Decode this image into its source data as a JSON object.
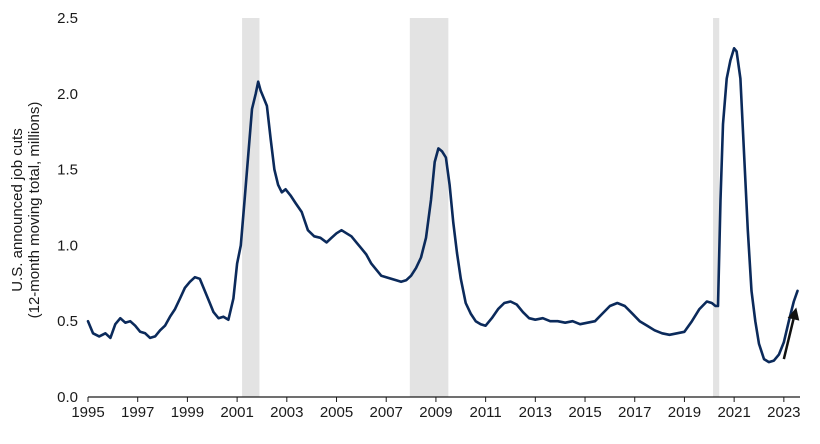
{
  "chart_data": {
    "type": "line",
    "title": "",
    "ylabel_line1": "U.S. announced job cuts",
    "ylabel_line2": "(12-month moving total, millions)",
    "xlim": [
      1995,
      2023.65
    ],
    "ylim": [
      0,
      2.5
    ],
    "yticks": [
      "0.0",
      "0.5",
      "1.0",
      "1.5",
      "2.0",
      "2.5"
    ],
    "xticks": [
      "1995",
      "1997",
      "1999",
      "2001",
      "2003",
      "2005",
      "2007",
      "2009",
      "2011",
      "2013",
      "2015",
      "2017",
      "2019",
      "2021",
      "2023"
    ],
    "grid": false,
    "line_color": "#0b2a5b",
    "shade_color": "#e3e3e3",
    "recessions": [
      [
        2001.2,
        2001.9
      ],
      [
        2007.95,
        2009.5
      ],
      [
        2020.15,
        2020.4
      ]
    ],
    "series": [
      {
        "x": [
          1995.0,
          1995.2,
          1995.45,
          1995.7,
          1995.9,
          1996.1,
          1996.3,
          1996.5,
          1996.7,
          1996.9,
          1997.1,
          1997.3,
          1997.5,
          1997.7,
          1997.9,
          1998.1,
          1998.3,
          1998.5,
          1998.7,
          1998.9,
          1999.1,
          1999.3,
          1999.5,
          1999.7,
          1999.9,
          2000.05,
          2000.25,
          2000.45,
          2000.65,
          2000.85,
          2001.0,
          2001.15,
          2001.3,
          2001.45,
          2001.6,
          2001.75,
          2001.85,
          2001.95,
          2002.05,
          2002.2,
          2002.35,
          2002.5,
          2002.65,
          2002.8,
          2002.95,
          2003.15,
          2003.35,
          2003.6,
          2003.85,
          2004.1,
          2004.35,
          2004.6,
          2004.8,
          2005.0,
          2005.2,
          2005.4,
          2005.6,
          2005.8,
          2006.0,
          2006.2,
          2006.4,
          2006.6,
          2006.8,
          2007.0,
          2007.2,
          2007.4,
          2007.6,
          2007.8,
          2008.0,
          2008.2,
          2008.4,
          2008.6,
          2008.8,
          2008.95,
          2009.1,
          2009.25,
          2009.4,
          2009.55,
          2009.7,
          2009.85,
          2010.0,
          2010.2,
          2010.4,
          2010.6,
          2010.8,
          2011.0,
          2011.25,
          2011.5,
          2011.75,
          2012.0,
          2012.25,
          2012.5,
          2012.75,
          2013.0,
          2013.3,
          2013.6,
          2013.9,
          2014.2,
          2014.5,
          2014.8,
          2015.1,
          2015.4,
          2015.7,
          2016.0,
          2016.3,
          2016.6,
          2016.9,
          2017.2,
          2017.5,
          2017.8,
          2018.1,
          2018.4,
          2018.7,
          2019.0,
          2019.3,
          2019.6,
          2019.9,
          2020.1,
          2020.25,
          2020.35,
          2020.45,
          2020.55,
          2020.7,
          2020.85,
          2021.0,
          2021.1,
          2021.25,
          2021.4,
          2021.55,
          2021.7,
          2021.85,
          2022.0,
          2022.2,
          2022.4,
          2022.6,
          2022.8,
          2023.0,
          2023.2,
          2023.4,
          2023.55
        ],
        "values": [
          0.5,
          0.42,
          0.4,
          0.42,
          0.39,
          0.48,
          0.52,
          0.49,
          0.5,
          0.47,
          0.43,
          0.42,
          0.39,
          0.4,
          0.44,
          0.47,
          0.53,
          0.58,
          0.65,
          0.72,
          0.76,
          0.79,
          0.78,
          0.7,
          0.62,
          0.56,
          0.52,
          0.53,
          0.51,
          0.65,
          0.88,
          1.0,
          1.3,
          1.6,
          1.9,
          2.0,
          2.08,
          2.02,
          1.98,
          1.92,
          1.7,
          1.5,
          1.4,
          1.35,
          1.37,
          1.33,
          1.28,
          1.22,
          1.1,
          1.06,
          1.05,
          1.02,
          1.05,
          1.08,
          1.1,
          1.08,
          1.06,
          1.02,
          0.98,
          0.94,
          0.88,
          0.84,
          0.8,
          0.79,
          0.78,
          0.77,
          0.76,
          0.77,
          0.8,
          0.85,
          0.92,
          1.05,
          1.3,
          1.55,
          1.64,
          1.62,
          1.58,
          1.4,
          1.15,
          0.95,
          0.78,
          0.62,
          0.55,
          0.5,
          0.48,
          0.47,
          0.52,
          0.58,
          0.62,
          0.63,
          0.61,
          0.56,
          0.52,
          0.51,
          0.52,
          0.5,
          0.5,
          0.49,
          0.5,
          0.48,
          0.49,
          0.5,
          0.55,
          0.6,
          0.62,
          0.6,
          0.55,
          0.5,
          0.47,
          0.44,
          0.42,
          0.41,
          0.42,
          0.43,
          0.5,
          0.58,
          0.63,
          0.62,
          0.6,
          0.6,
          1.3,
          1.8,
          2.1,
          2.22,
          2.3,
          2.28,
          2.1,
          1.6,
          1.1,
          0.7,
          0.5,
          0.35,
          0.25,
          0.23,
          0.24,
          0.28,
          0.36,
          0.5,
          0.63,
          0.7
        ]
      }
    ],
    "annotation": {
      "type": "arrow",
      "from": [
        2023.0,
        0.25
      ],
      "to": [
        2023.5,
        0.59
      ],
      "color": "#111111"
    }
  }
}
